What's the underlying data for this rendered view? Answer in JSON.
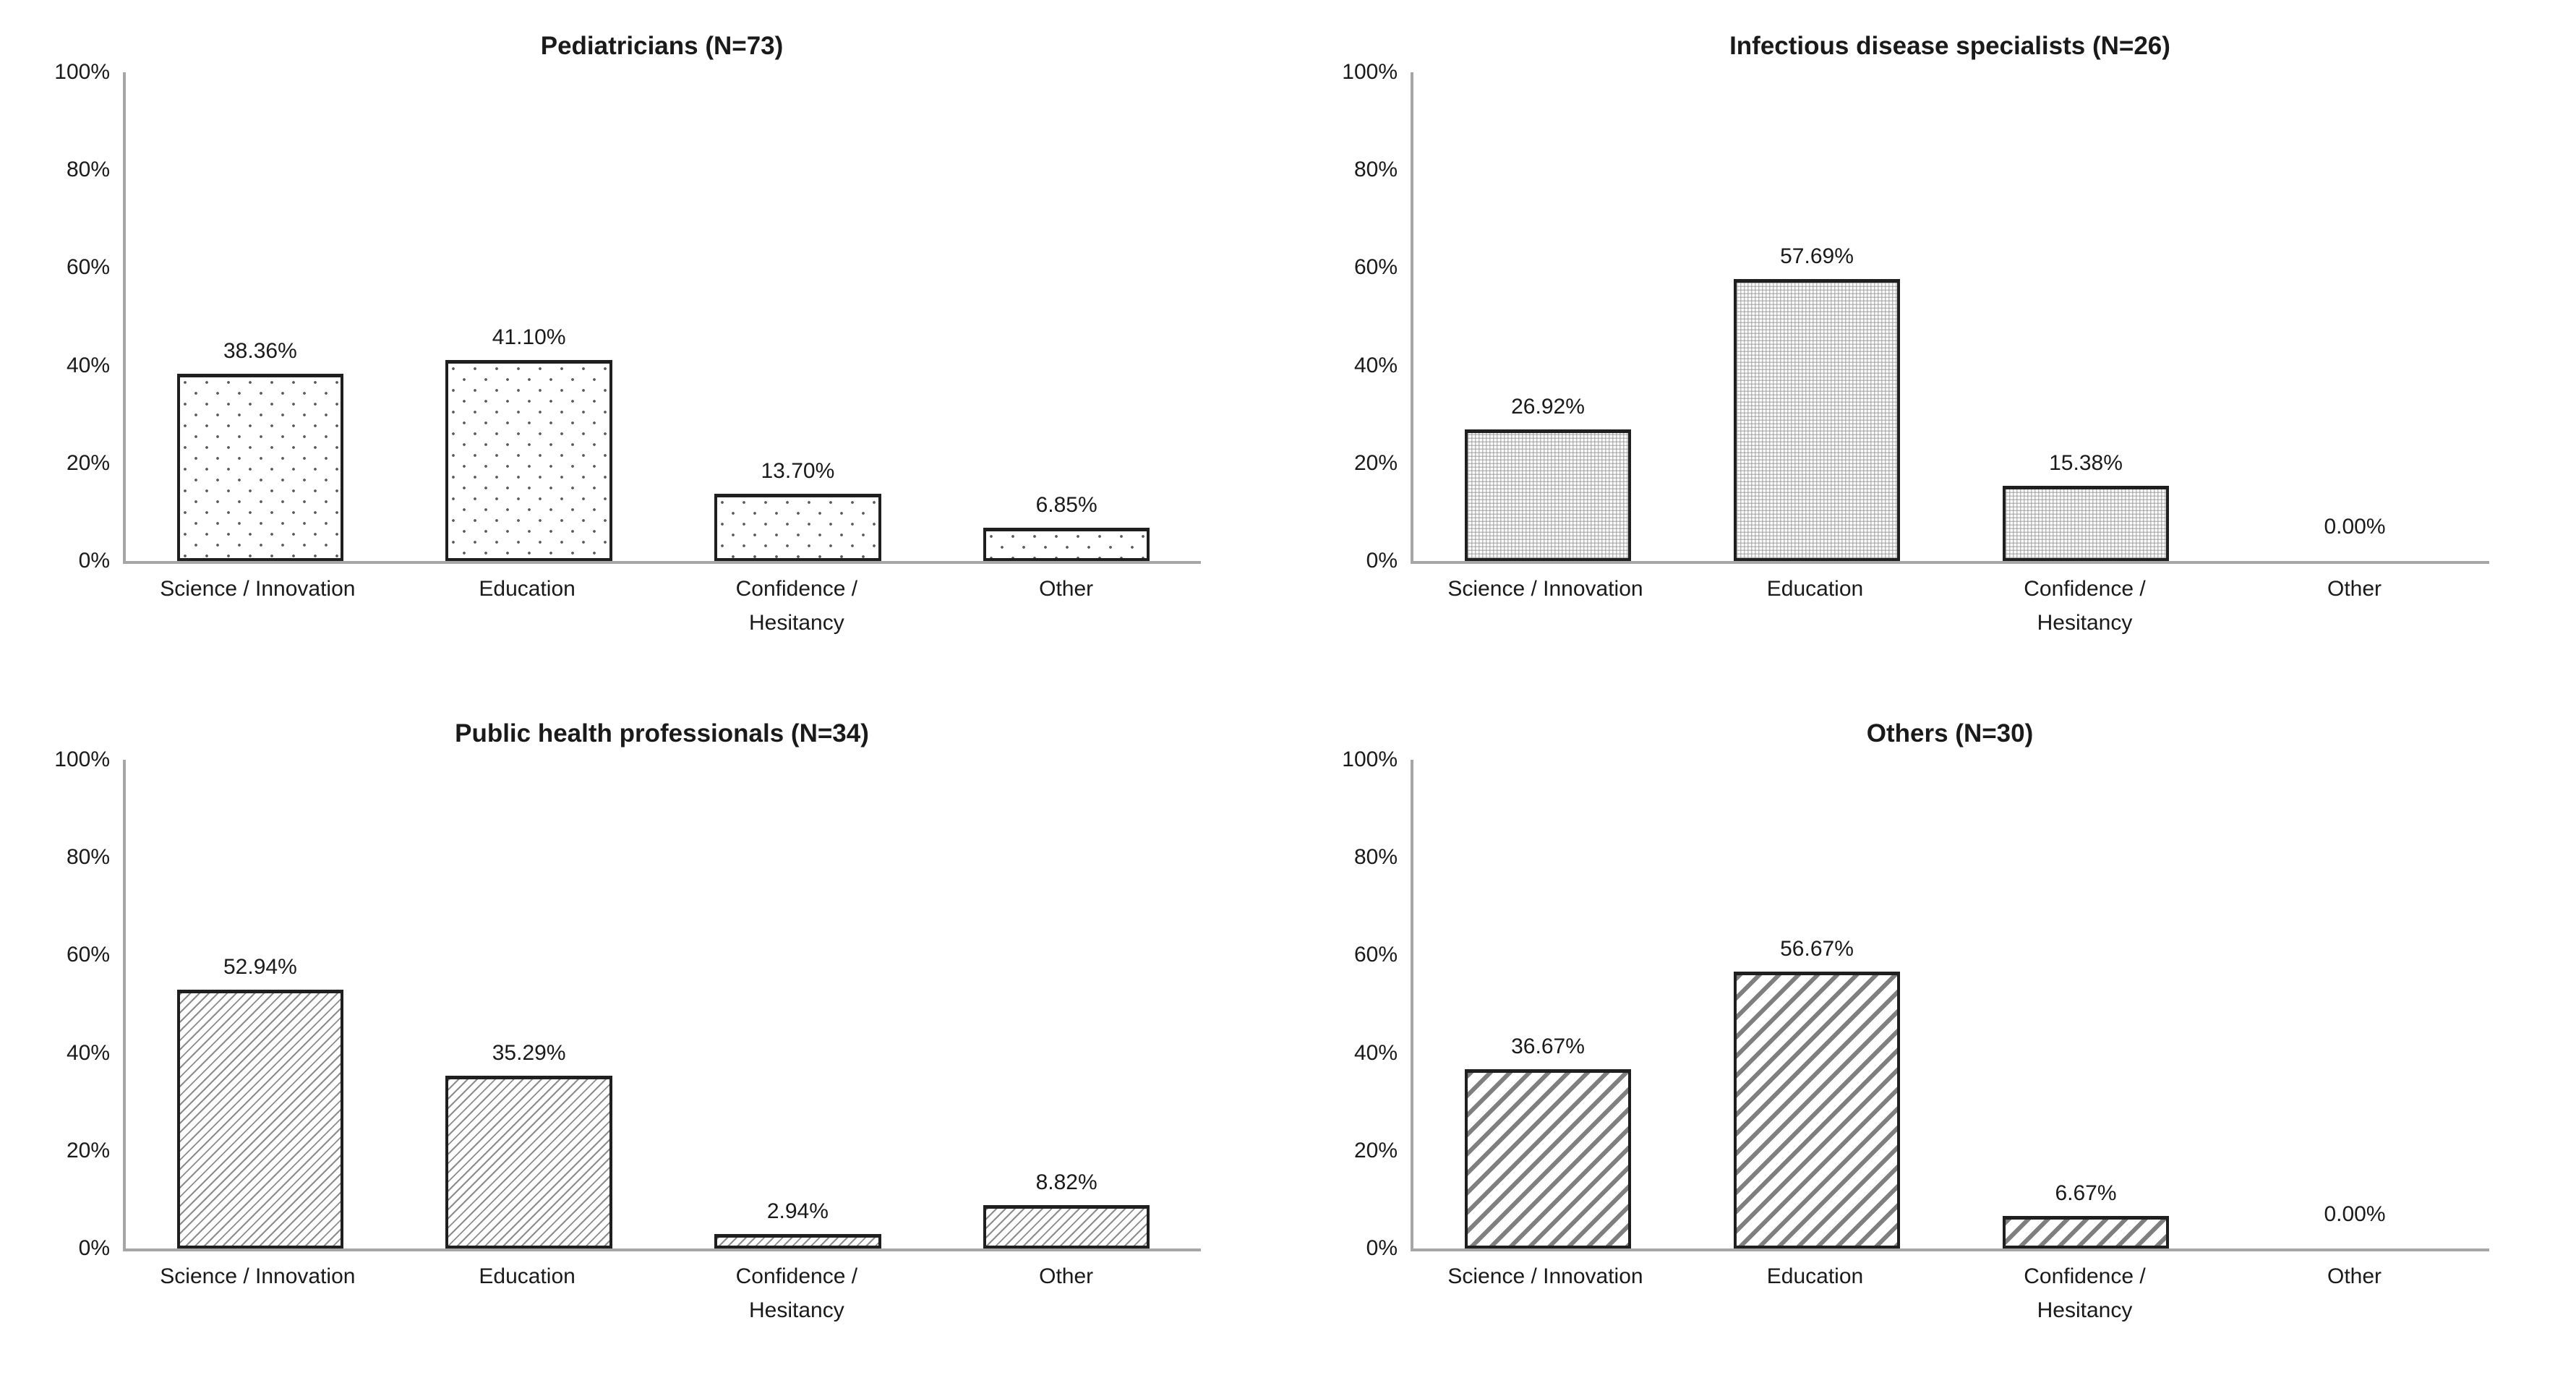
{
  "page": {
    "background": "#ffffff",
    "layout": "2x2-grid-of-bar-charts"
  },
  "colors": {
    "axis_line": "#a6a6a6",
    "bar_border": "#1f1f1f",
    "text": "#1a1a1a",
    "sparse_dot": "#595959",
    "fine_mesh": "#949494",
    "thin_stripe": "#8c8c8c",
    "thick_stripe": "#7f7f7f"
  },
  "y_ticks_top_to_bottom": [
    "100%",
    "80%",
    "60%",
    "40%",
    "20%",
    "0%"
  ],
  "categories_display": [
    "Science / Innovation",
    "Education",
    "Confidence /\nHesitancy",
    "Other"
  ],
  "chart_data": [
    {
      "type": "bar",
      "title": "Pediatricians (N=73)",
      "categories": [
        "Science / Innovation",
        "Education",
        "Confidence / Hesitancy",
        "Other"
      ],
      "values": [
        38.36,
        41.1,
        13.7,
        6.85
      ],
      "data_labels": [
        "38.36%",
        "41.10%",
        "13.70%",
        "6.85%"
      ],
      "xlabel": "",
      "ylabel": "",
      "ylim": [
        0,
        100
      ],
      "y_tick_interval": 20,
      "grid": false,
      "legend": false,
      "bar_pattern": "sparse-dots"
    },
    {
      "type": "bar",
      "title": "Infectious disease specialists (N=26)",
      "categories": [
        "Science / Innovation",
        "Education",
        "Confidence / Hesitancy",
        "Other"
      ],
      "values": [
        26.92,
        57.69,
        15.38,
        0.0
      ],
      "data_labels": [
        "26.92%",
        "57.69%",
        "15.38%",
        "0.00%"
      ],
      "xlabel": "",
      "ylabel": "",
      "ylim": [
        0,
        100
      ],
      "y_tick_interval": 20,
      "grid": false,
      "legend": false,
      "bar_pattern": "fine-mesh"
    },
    {
      "type": "bar",
      "title": "Public health professionals (N=34)",
      "categories": [
        "Science / Innovation",
        "Education",
        "Confidence / Hesitancy",
        "Other"
      ],
      "values": [
        52.94,
        35.29,
        2.94,
        8.82
      ],
      "data_labels": [
        "52.94%",
        "35.29%",
        "2.94%",
        "8.82%"
      ],
      "xlabel": "",
      "ylabel": "",
      "ylim": [
        0,
        100
      ],
      "y_tick_interval": 20,
      "grid": false,
      "legend": false,
      "bar_pattern": "thin-diagonal"
    },
    {
      "type": "bar",
      "title": "Others (N=30)",
      "categories": [
        "Science / Innovation",
        "Education",
        "Confidence / Hesitancy",
        "Other"
      ],
      "values": [
        36.67,
        56.67,
        6.67,
        0.0
      ],
      "data_labels": [
        "36.67%",
        "56.67%",
        "6.67%",
        "0.00%"
      ],
      "xlabel": "",
      "ylabel": "",
      "ylim": [
        0,
        100
      ],
      "y_tick_interval": 20,
      "grid": false,
      "legend": false,
      "bar_pattern": "thick-diagonal"
    }
  ]
}
